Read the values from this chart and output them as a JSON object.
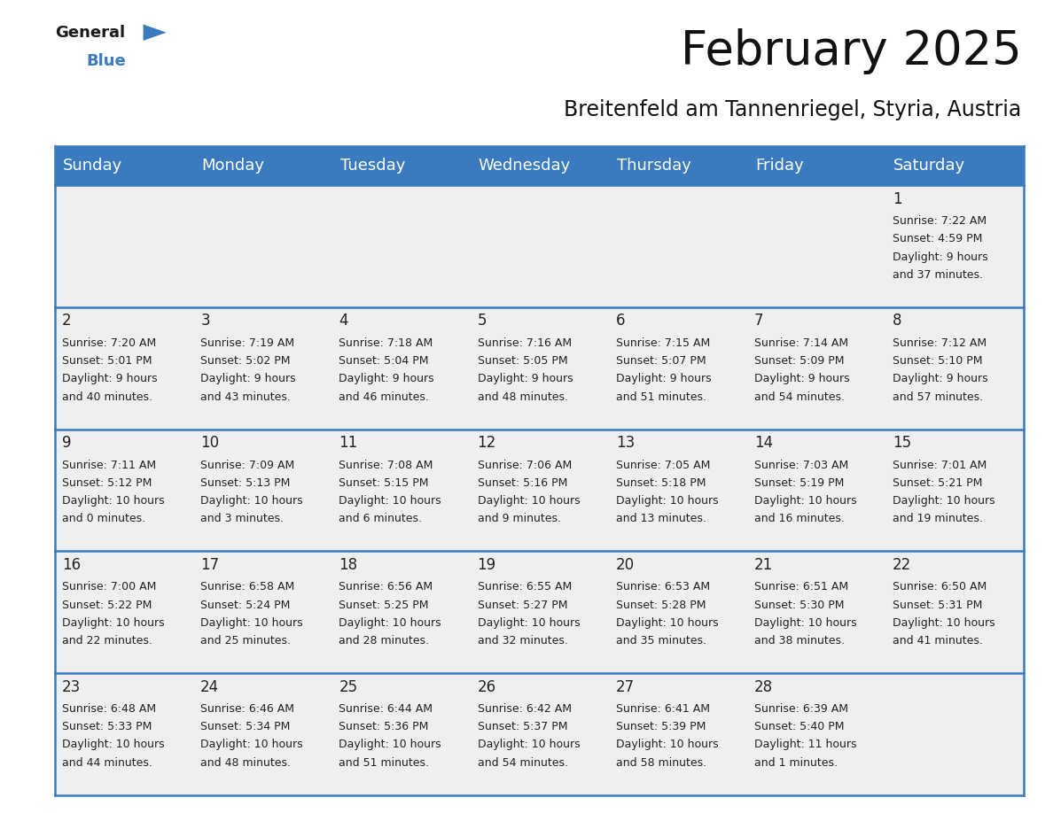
{
  "title": "February 2025",
  "subtitle": "Breitenfeld am Tannenriegel, Styria, Austria",
  "header_color": "#3a7bbf",
  "header_text_color": "#ffffff",
  "cell_bg_color": "#efefef",
  "border_color": "#3a7bbf",
  "day_headers": [
    "Sunday",
    "Monday",
    "Tuesday",
    "Wednesday",
    "Thursday",
    "Friday",
    "Saturday"
  ],
  "title_fontsize": 38,
  "subtitle_fontsize": 17,
  "header_fontsize": 13,
  "day_num_fontsize": 12,
  "cell_fontsize": 9,
  "days": [
    {
      "day": 1,
      "col": 6,
      "row": 0,
      "sunrise": "7:22 AM",
      "sunset": "4:59 PM",
      "daylight_hours": 9,
      "daylight_minutes": 37
    },
    {
      "day": 2,
      "col": 0,
      "row": 1,
      "sunrise": "7:20 AM",
      "sunset": "5:01 PM",
      "daylight_hours": 9,
      "daylight_minutes": 40
    },
    {
      "day": 3,
      "col": 1,
      "row": 1,
      "sunrise": "7:19 AM",
      "sunset": "5:02 PM",
      "daylight_hours": 9,
      "daylight_minutes": 43
    },
    {
      "day": 4,
      "col": 2,
      "row": 1,
      "sunrise": "7:18 AM",
      "sunset": "5:04 PM",
      "daylight_hours": 9,
      "daylight_minutes": 46
    },
    {
      "day": 5,
      "col": 3,
      "row": 1,
      "sunrise": "7:16 AM",
      "sunset": "5:05 PM",
      "daylight_hours": 9,
      "daylight_minutes": 48
    },
    {
      "day": 6,
      "col": 4,
      "row": 1,
      "sunrise": "7:15 AM",
      "sunset": "5:07 PM",
      "daylight_hours": 9,
      "daylight_minutes": 51
    },
    {
      "day": 7,
      "col": 5,
      "row": 1,
      "sunrise": "7:14 AM",
      "sunset": "5:09 PM",
      "daylight_hours": 9,
      "daylight_minutes": 54
    },
    {
      "day": 8,
      "col": 6,
      "row": 1,
      "sunrise": "7:12 AM",
      "sunset": "5:10 PM",
      "daylight_hours": 9,
      "daylight_minutes": 57
    },
    {
      "day": 9,
      "col": 0,
      "row": 2,
      "sunrise": "7:11 AM",
      "sunset": "5:12 PM",
      "daylight_hours": 10,
      "daylight_minutes": 0
    },
    {
      "day": 10,
      "col": 1,
      "row": 2,
      "sunrise": "7:09 AM",
      "sunset": "5:13 PM",
      "daylight_hours": 10,
      "daylight_minutes": 3
    },
    {
      "day": 11,
      "col": 2,
      "row": 2,
      "sunrise": "7:08 AM",
      "sunset": "5:15 PM",
      "daylight_hours": 10,
      "daylight_minutes": 6
    },
    {
      "day": 12,
      "col": 3,
      "row": 2,
      "sunrise": "7:06 AM",
      "sunset": "5:16 PM",
      "daylight_hours": 10,
      "daylight_minutes": 9
    },
    {
      "day": 13,
      "col": 4,
      "row": 2,
      "sunrise": "7:05 AM",
      "sunset": "5:18 PM",
      "daylight_hours": 10,
      "daylight_minutes": 13
    },
    {
      "day": 14,
      "col": 5,
      "row": 2,
      "sunrise": "7:03 AM",
      "sunset": "5:19 PM",
      "daylight_hours": 10,
      "daylight_minutes": 16
    },
    {
      "day": 15,
      "col": 6,
      "row": 2,
      "sunrise": "7:01 AM",
      "sunset": "5:21 PM",
      "daylight_hours": 10,
      "daylight_minutes": 19
    },
    {
      "day": 16,
      "col": 0,
      "row": 3,
      "sunrise": "7:00 AM",
      "sunset": "5:22 PM",
      "daylight_hours": 10,
      "daylight_minutes": 22
    },
    {
      "day": 17,
      "col": 1,
      "row": 3,
      "sunrise": "6:58 AM",
      "sunset": "5:24 PM",
      "daylight_hours": 10,
      "daylight_minutes": 25
    },
    {
      "day": 18,
      "col": 2,
      "row": 3,
      "sunrise": "6:56 AM",
      "sunset": "5:25 PM",
      "daylight_hours": 10,
      "daylight_minutes": 28
    },
    {
      "day": 19,
      "col": 3,
      "row": 3,
      "sunrise": "6:55 AM",
      "sunset": "5:27 PM",
      "daylight_hours": 10,
      "daylight_minutes": 32
    },
    {
      "day": 20,
      "col": 4,
      "row": 3,
      "sunrise": "6:53 AM",
      "sunset": "5:28 PM",
      "daylight_hours": 10,
      "daylight_minutes": 35
    },
    {
      "day": 21,
      "col": 5,
      "row": 3,
      "sunrise": "6:51 AM",
      "sunset": "5:30 PM",
      "daylight_hours": 10,
      "daylight_minutes": 38
    },
    {
      "day": 22,
      "col": 6,
      "row": 3,
      "sunrise": "6:50 AM",
      "sunset": "5:31 PM",
      "daylight_hours": 10,
      "daylight_minutes": 41
    },
    {
      "day": 23,
      "col": 0,
      "row": 4,
      "sunrise": "6:48 AM",
      "sunset": "5:33 PM",
      "daylight_hours": 10,
      "daylight_minutes": 44
    },
    {
      "day": 24,
      "col": 1,
      "row": 4,
      "sunrise": "6:46 AM",
      "sunset": "5:34 PM",
      "daylight_hours": 10,
      "daylight_minutes": 48
    },
    {
      "day": 25,
      "col": 2,
      "row": 4,
      "sunrise": "6:44 AM",
      "sunset": "5:36 PM",
      "daylight_hours": 10,
      "daylight_minutes": 51
    },
    {
      "day": 26,
      "col": 3,
      "row": 4,
      "sunrise": "6:42 AM",
      "sunset": "5:37 PM",
      "daylight_hours": 10,
      "daylight_minutes": 54
    },
    {
      "day": 27,
      "col": 4,
      "row": 4,
      "sunrise": "6:41 AM",
      "sunset": "5:39 PM",
      "daylight_hours": 10,
      "daylight_minutes": 58
    },
    {
      "day": 28,
      "col": 5,
      "row": 4,
      "sunrise": "6:39 AM",
      "sunset": "5:40 PM",
      "daylight_hours": 11,
      "daylight_minutes": 1
    }
  ]
}
